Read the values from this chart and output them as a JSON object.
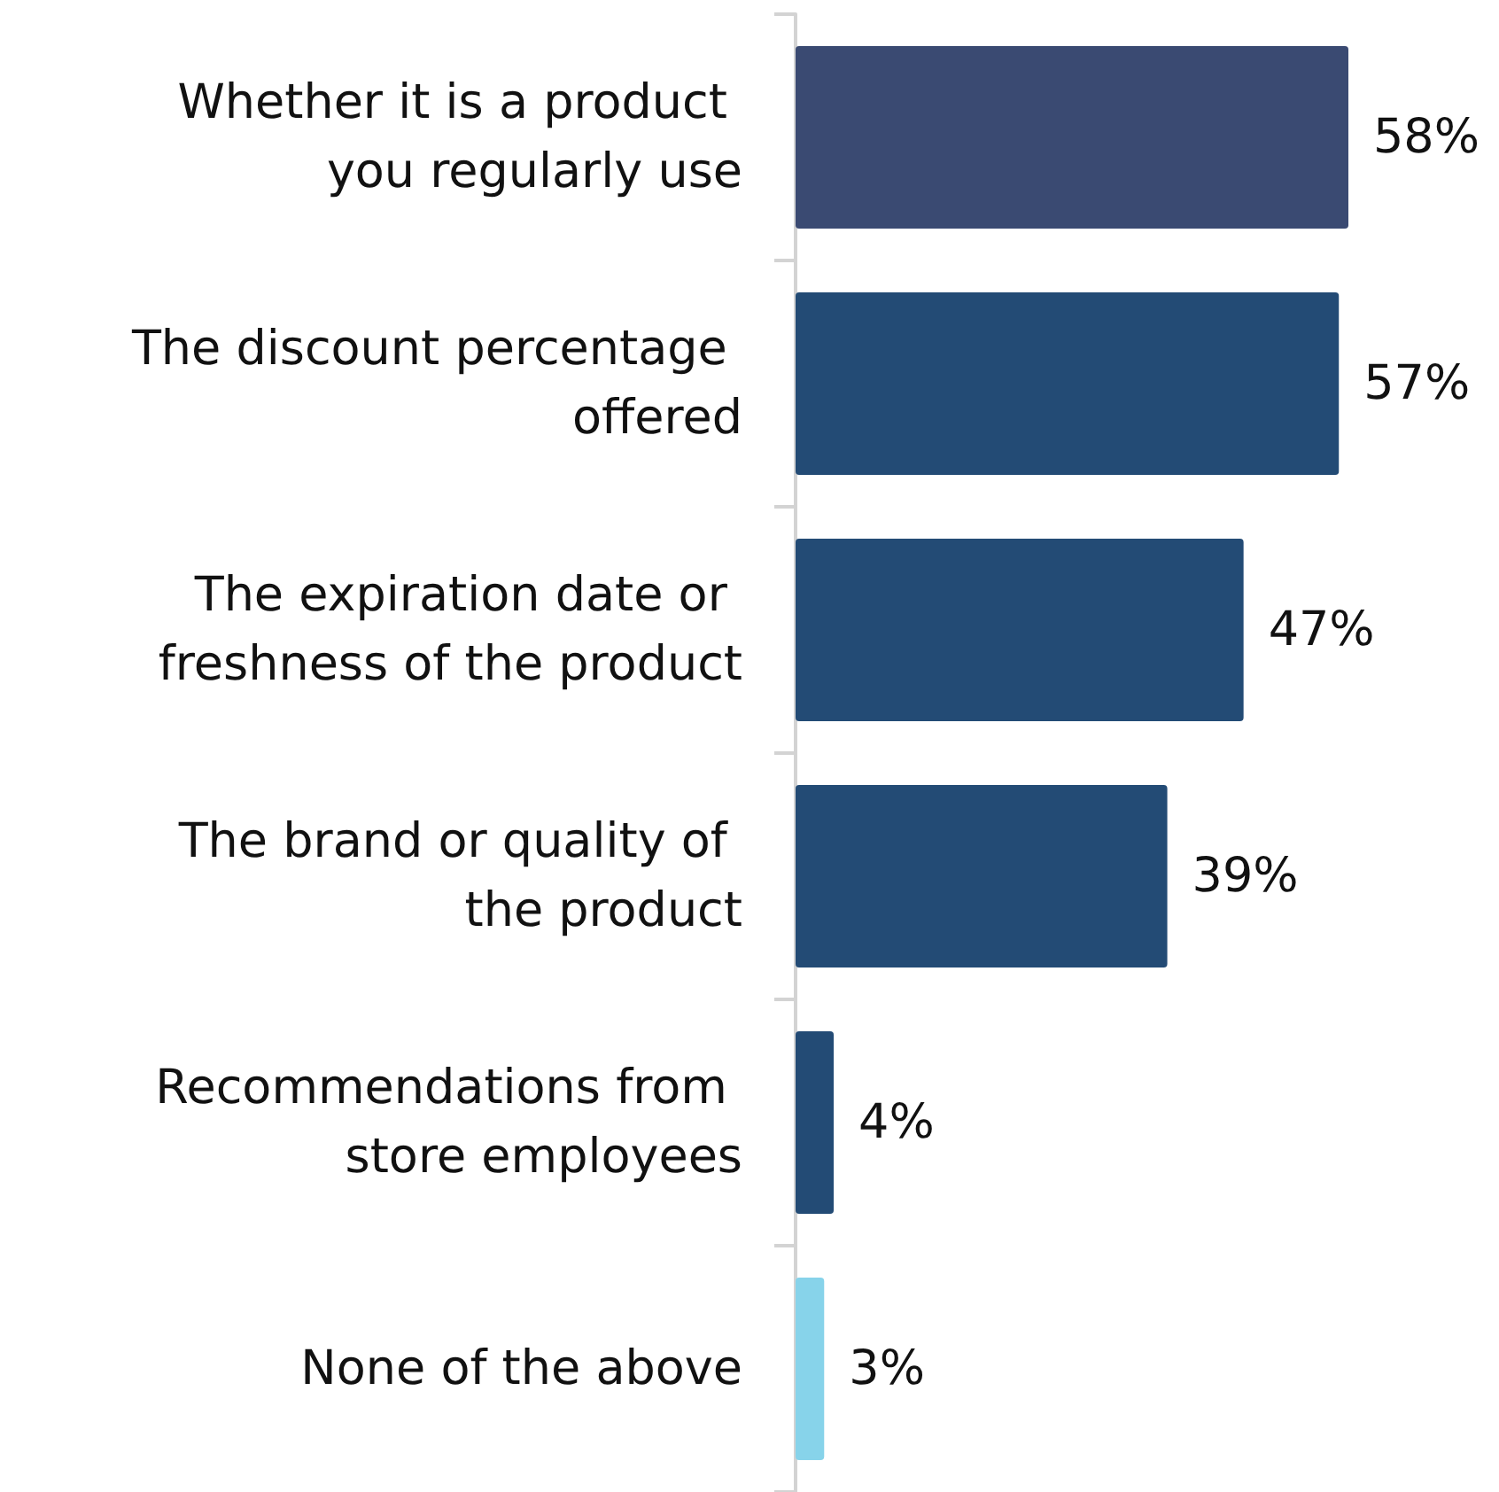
{
  "chart_data": {
    "type": "bar",
    "orientation": "horizontal",
    "categories": [
      "Whether it is a product you regularly use",
      "The discount percentage offered",
      "The expiration date or freshness of the product",
      "The brand or quality of the product",
      "Recommendations from store employees",
      "None of the above"
    ],
    "values": [
      58,
      57,
      47,
      39,
      4,
      3
    ],
    "colors": [
      "#3a4a72",
      "#234b75",
      "#234b75",
      "#234b75",
      "#234b75",
      "#87d3ea"
    ],
    "value_labels": [
      "58%",
      "57%",
      "47%",
      "39%",
      "4%",
      "3%"
    ]
  }
}
